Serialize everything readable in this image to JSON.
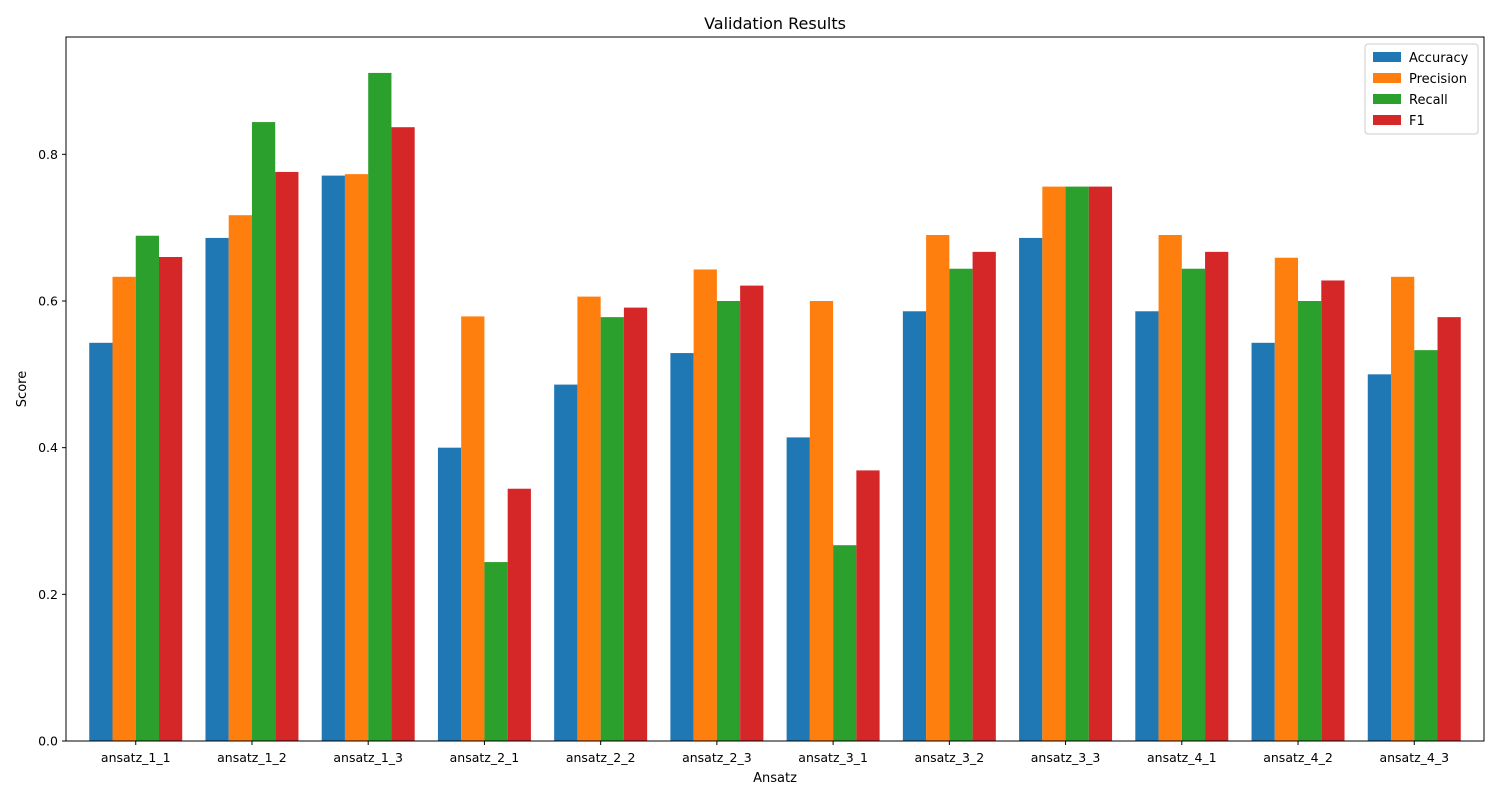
{
  "chart_data": {
    "type": "bar",
    "title": "Validation Results",
    "xlabel": "Ansatz",
    "ylabel": "Score",
    "ylim": [
      0,
      0.96
    ],
    "yticks": [
      0.0,
      0.2,
      0.4,
      0.6,
      0.8
    ],
    "ytick_labels": [
      "0.0",
      "0.2",
      "0.4",
      "0.6",
      "0.8"
    ],
    "grid": false,
    "legend_position": "top-right",
    "categories": [
      "ansatz_1_1",
      "ansatz_1_2",
      "ansatz_1_3",
      "ansatz_2_1",
      "ansatz_2_2",
      "ansatz_2_3",
      "ansatz_3_1",
      "ansatz_3_2",
      "ansatz_3_3",
      "ansatz_4_1",
      "ansatz_4_2",
      "ansatz_4_3"
    ],
    "series": [
      {
        "name": "Accuracy",
        "color": "#1f77b4",
        "values": [
          0.543,
          0.686,
          0.771,
          0.4,
          0.486,
          0.529,
          0.414,
          0.586,
          0.686,
          0.586,
          0.543,
          0.5
        ]
      },
      {
        "name": "Precision",
        "color": "#ff7f0e",
        "values": [
          0.633,
          0.717,
          0.773,
          0.579,
          0.606,
          0.643,
          0.6,
          0.69,
          0.756,
          0.69,
          0.659,
          0.633
        ]
      },
      {
        "name": "Recall",
        "color": "#2ca02c",
        "values": [
          0.689,
          0.844,
          0.911,
          0.244,
          0.578,
          0.6,
          0.267,
          0.644,
          0.756,
          0.644,
          0.6,
          0.533
        ]
      },
      {
        "name": "F1",
        "color": "#d62728",
        "values": [
          0.66,
          0.776,
          0.837,
          0.344,
          0.591,
          0.621,
          0.369,
          0.667,
          0.756,
          0.667,
          0.628,
          0.578
        ]
      }
    ]
  }
}
